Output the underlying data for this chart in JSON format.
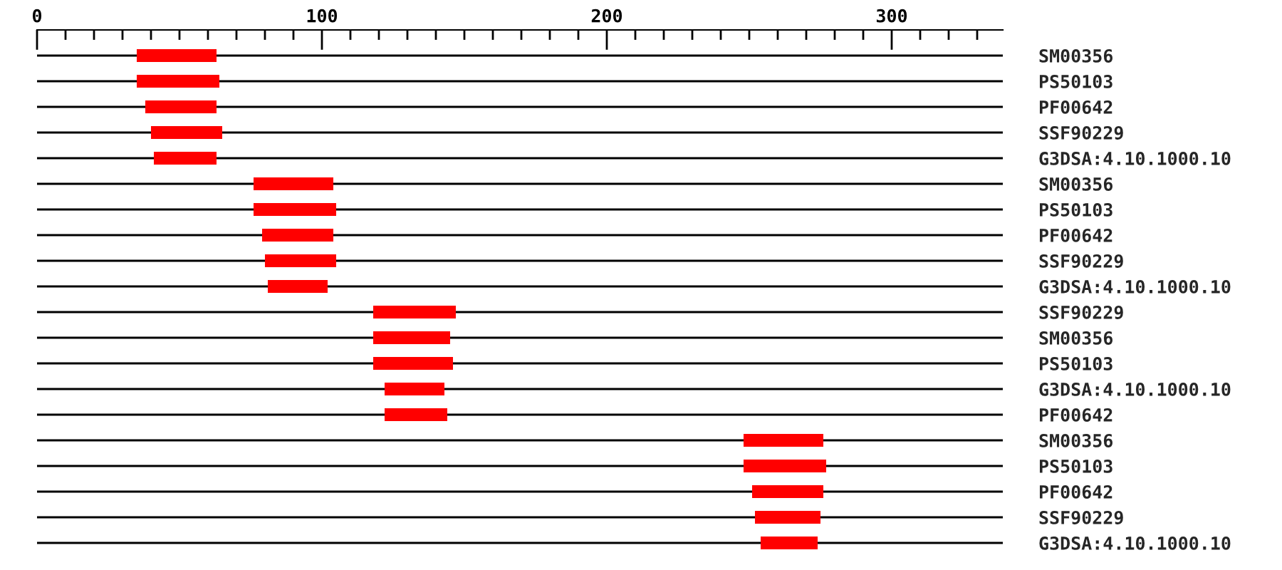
{
  "chart_data": {
    "type": "bar",
    "orientation": "horizontal",
    "categories": [
      "SM00356",
      "PS50103",
      "PF00642",
      "SSF90229",
      "G3DSA:4.10.1000.10",
      "SM00356",
      "PS50103",
      "PF00642",
      "SSF90229",
      "G3DSA:4.10.1000.10",
      "SSF90229",
      "SM00356",
      "PS50103",
      "G3DSA:4.10.1000.10",
      "PF00642",
      "SM00356",
      "PS50103",
      "PF00642",
      "SSF90229",
      "G3DSA:4.10.1000.10"
    ],
    "base": [
      35,
      35,
      38,
      40,
      41,
      76,
      76,
      79,
      80,
      81,
      118,
      118,
      118,
      122,
      122,
      248,
      248,
      251,
      252,
      254
    ],
    "values": [
      28,
      29,
      25,
      25,
      22,
      28,
      29,
      25,
      25,
      21,
      29,
      27,
      28,
      21,
      22,
      28,
      29,
      25,
      23,
      20
    ],
    "color": "#ff0000",
    "xlim": [
      0,
      339
    ],
    "xticks": [
      0,
      {
        "value": 10,
        "label": null
      },
      {
        "value": 20,
        "label": null
      },
      {
        "value": 30,
        "label": null
      },
      {
        "value": 40,
        "label": null
      },
      {
        "value": 50,
        "label": null
      },
      {
        "value": 60,
        "label": null
      },
      {
        "value": 70,
        "label": null
      },
      {
        "value": 80,
        "label": null
      },
      {
        "value": 90,
        "label": null
      },
      100,
      {
        "value": 110,
        "label": null
      },
      {
        "value": 120,
        "label": null
      },
      {
        "value": 130,
        "label": null
      },
      {
        "value": 140,
        "label": null
      },
      {
        "value": 150,
        "label": null
      },
      {
        "value": 160,
        "label": null
      },
      {
        "value": 170,
        "label": null
      },
      {
        "value": 180,
        "label": null
      },
      {
        "value": 190,
        "label": null
      },
      200,
      {
        "value": 210,
        "label": null
      },
      {
        "value": 220,
        "label": null
      },
      {
        "value": 230,
        "label": null
      },
      {
        "value": 240,
        "label": null
      },
      {
        "value": 250,
        "label": null
      },
      {
        "value": 260,
        "label": null
      },
      {
        "value": 270,
        "label": null
      },
      {
        "value": 280,
        "label": null
      },
      {
        "value": 290,
        "label": null
      },
      300,
      {
        "value": 310,
        "label": null
      },
      {
        "value": 320,
        "label": null
      },
      {
        "value": 330,
        "label": null
      }
    ],
    "grid": "y",
    "legend": false
  }
}
